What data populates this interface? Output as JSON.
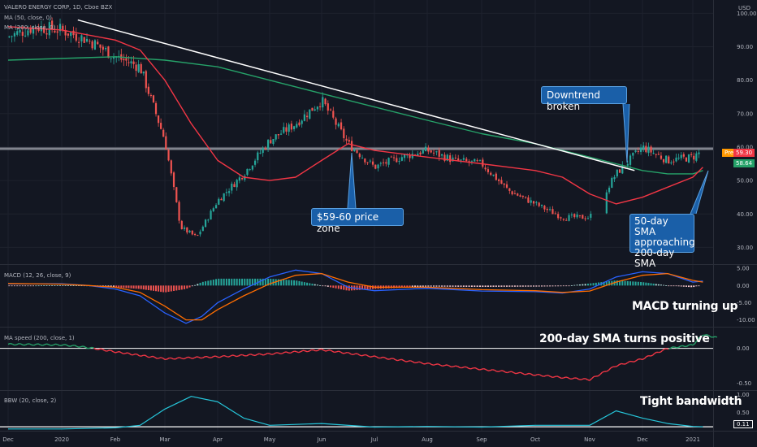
{
  "chart_title": "VALERO ENERGY CORP, 1D, Cboe BZX",
  "currency": "USD",
  "indicators": {
    "ma50": "MA (50, close, 0)",
    "ma200": "MA (200, close, 0)",
    "macd": "MACD (12, 26, close, 9)",
    "ma_speed": "MA speed (200, close, 1)",
    "bbw": "BBW (20, close, 2)"
  },
  "price_tags": {
    "pre_label": "Pre",
    "pre_value": "59.30",
    "ma_value": "58.64"
  },
  "bbw_tag": "0.11",
  "callouts": {
    "downtrend": "Downtrend broken",
    "price_zone": "$59-60 price zone",
    "sma_line1": "50-day SMA",
    "sma_line2": "approaching",
    "sma_line3": "200-day SMA"
  },
  "notes": {
    "macd": "MACD turning up",
    "ma_speed": "200-day SMA turns positive",
    "bbw": "Tight bandwidth"
  },
  "colors": {
    "background": "#131722",
    "ma50": "#f23645",
    "ma200": "#26a269",
    "trendline": "#ffffff",
    "callout": "#1a5fa8",
    "up_candle": "#26a69a",
    "down_candle": "#ef5350",
    "macd_line": "#2962ff",
    "signal_line": "#ff6d00",
    "speed_line": "#f23645",
    "bbw_line": "#26c6da"
  },
  "chart_data": [
    {
      "type": "candlestick",
      "title": "VALERO ENERGY CORP, 1D, Cboe BZX",
      "y_axis_ticks": [
        "100.00",
        "90.00",
        "80.00",
        "70.00",
        "60.00",
        "50.00",
        "40.00",
        "30.00"
      ],
      "ylim": [
        25,
        103
      ],
      "x_axis_ticks": [
        "Dec",
        "2020",
        "Feb",
        "Mar",
        "Apr",
        "May",
        "Jun",
        "Jul",
        "Aug",
        "Sep",
        "Oct",
        "Nov",
        "Dec",
        "2021"
      ],
      "close_series": {
        "x_month_index": [
          0,
          0.5,
          1,
          1.5,
          2,
          2.5,
          3,
          3.3,
          3.6,
          4,
          4.5,
          5,
          5.5,
          6,
          6.5,
          7,
          7.5,
          8,
          8.5,
          9,
          9.5,
          10,
          10.5,
          11,
          11.5,
          12,
          12.5,
          13,
          13.2
        ],
        "values": [
          93,
          96,
          95,
          92,
          87,
          84,
          62,
          36,
          33,
          44,
          52,
          62,
          67,
          74,
          61,
          54,
          57,
          59,
          56,
          55,
          47,
          43,
          39,
          39,
          52,
          60,
          56,
          57,
          59
        ]
      },
      "series": [
        {
          "name": "MA (50, close, 0)",
          "x_month_index": [
            0,
            1,
            2,
            2.5,
            3,
            3.5,
            4,
            4.5,
            5,
            5.5,
            6,
            6.5,
            7,
            8,
            9,
            10,
            10.5,
            11,
            11.5,
            12,
            12.5,
            13,
            13.2
          ],
          "values": [
            96,
            95,
            92,
            89,
            80,
            67,
            56,
            51,
            50,
            51,
            56,
            61,
            59,
            57,
            55,
            53,
            51,
            46,
            43,
            45,
            48,
            51,
            54
          ]
        },
        {
          "name": "MA (200, close, 0)",
          "x_month_index": [
            0,
            2,
            3,
            4,
            5,
            6,
            7,
            8,
            9,
            10,
            11,
            11.5,
            12,
            12.5,
            13,
            13.2
          ],
          "values": [
            86,
            87,
            86,
            84,
            80,
            76,
            72,
            68,
            64,
            61,
            57,
            55,
            53,
            52,
            52,
            53
          ]
        }
      ]
    },
    {
      "type": "line",
      "title": "MACD (12, 26, close, 9)",
      "y_axis_ticks": [
        "5.00",
        "0.00",
        "-5.00",
        "-10.00"
      ],
      "ylim": [
        -12,
        6
      ],
      "x_month_index": [
        0,
        1,
        1.5,
        2,
        2.5,
        3,
        3.4,
        3.7,
        4,
        4.5,
        5,
        5.5,
        6,
        6.5,
        7,
        8,
        9,
        10,
        10.5,
        11,
        11.5,
        12,
        12.5,
        13,
        13.2
      ],
      "series": [
        {
          "name": "MACD",
          "values": [
            0.5,
            0.5,
            0,
            -1,
            -3,
            -8,
            -11,
            -9,
            -5,
            -1,
            2.5,
            4.5,
            3.5,
            -0.5,
            -1.5,
            -0.8,
            -1.6,
            -1.8,
            -2.2,
            -1.0,
            2.5,
            4.0,
            3.5,
            1.0,
            1.3
          ]
        },
        {
          "name": "Signal",
          "values": [
            0.6,
            0.4,
            0,
            -0.5,
            -2,
            -6,
            -10,
            -10,
            -7,
            -3,
            0.5,
            3,
            3.5,
            1,
            -0.5,
            -0.5,
            -1.2,
            -1.5,
            -2.0,
            -1.6,
            1.0,
            3.0,
            3.5,
            1.5,
            1.0
          ]
        }
      ]
    },
    {
      "type": "line",
      "title": "MA speed (200, close, 1)",
      "y_axis_ticks": [
        "0.00",
        "-0.50"
      ],
      "ylim": [
        -0.6,
        0.3
      ],
      "x_month_index": [
        0,
        1,
        1.3,
        1.6,
        2,
        3,
        4,
        5,
        6,
        7,
        8,
        9,
        10,
        10.5,
        11,
        11.5,
        12,
        12.5,
        13,
        13.2,
        13.5
      ],
      "series": [
        {
          "name": "MA speed",
          "values": [
            0.06,
            0.05,
            0.03,
            0.0,
            -0.05,
            -0.15,
            -0.12,
            -0.08,
            -0.02,
            -0.12,
            -0.22,
            -0.3,
            -0.38,
            -0.42,
            -0.45,
            -0.25,
            -0.15,
            0.0,
            0.05,
            0.2,
            0.15
          ]
        }
      ]
    },
    {
      "type": "line",
      "title": "BBW (20, close, 2)",
      "y_axis_ticks": [
        "1.00",
        "0.50"
      ],
      "ylim": [
        0,
        1.1
      ],
      "x_month_index": [
        0,
        1,
        2,
        2.5,
        3,
        3.5,
        4,
        4.5,
        5,
        6,
        7,
        8,
        9,
        10,
        11,
        11.5,
        12,
        12.5,
        13,
        13.2
      ],
      "series": [
        {
          "name": "BBW",
          "values": [
            0.05,
            0.05,
            0.08,
            0.15,
            0.6,
            0.95,
            0.8,
            0.35,
            0.15,
            0.2,
            0.1,
            0.12,
            0.1,
            0.15,
            0.15,
            0.55,
            0.35,
            0.2,
            0.12,
            0.11
          ]
        }
      ]
    }
  ]
}
